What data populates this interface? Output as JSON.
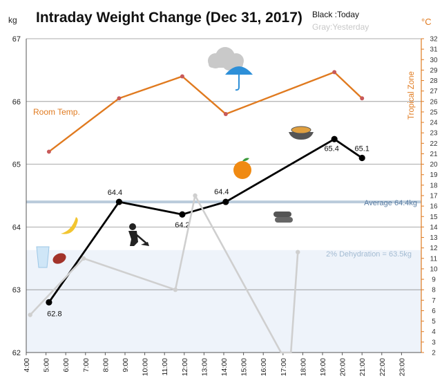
{
  "chart_data": {
    "type": "line",
    "title": "Intraday Weight Change (Dec 31, 2017)",
    "legend": {
      "today": "Black :Today",
      "yesterday": "Gray:Yesterday",
      "placement": "top-right"
    },
    "y_left": {
      "label": "kg",
      "range": [
        62,
        67
      ],
      "ticks": [
        "62",
        "63",
        "64",
        "65",
        "66",
        "67"
      ]
    },
    "y_right": {
      "label": "°C",
      "range": [
        2,
        32
      ],
      "ticks": [
        "2",
        "3",
        "4",
        "5",
        "6",
        "7",
        "8",
        "9",
        "10",
        "11",
        "12",
        "13",
        "14",
        "15",
        "16",
        "17",
        "18",
        "19",
        "20",
        "21",
        "22",
        "23",
        "24",
        "25",
        "26",
        "27",
        "28",
        "29",
        "30",
        "31",
        "32"
      ],
      "color": "#e07a1f"
    },
    "x": {
      "range": [
        4,
        24
      ],
      "ticks": [
        "4:00",
        "5:00",
        "6:00",
        "7:00",
        "8:00",
        "9:00",
        "10:00",
        "11:00",
        "12:00",
        "13:00",
        "14:00",
        "15:00",
        "16:00",
        "17:00",
        "18:00",
        "19:00",
        "20:00",
        "21:00",
        "22:00",
        "23:00"
      ],
      "tick_hours": [
        4,
        5,
        6,
        7,
        8,
        9,
        10,
        11,
        12,
        13,
        14,
        15,
        16,
        17,
        18,
        19,
        20,
        21,
        22,
        23
      ]
    },
    "grid": true,
    "series": [
      {
        "name": "Today",
        "axis": "left",
        "color": "#000000",
        "x": [
          5.15,
          8.7,
          11.9,
          14.1,
          19.6,
          21.0
        ],
        "values": [
          62.8,
          64.4,
          64.2,
          64.4,
          65.4,
          65.1
        ],
        "labels": [
          "62.8",
          "64.4",
          "64.2",
          "64.4",
          "65.4",
          "65.1"
        ]
      },
      {
        "name": "Yesterday",
        "axis": "left",
        "color": "#cfcfcf",
        "x": [
          4.2,
          6.9,
          11.55,
          12.55,
          16.9,
          17.4,
          17.75
        ],
        "values": [
          62.6,
          63.5,
          63.0,
          64.5,
          62.0,
          62.0,
          63.6
        ]
      },
      {
        "name": "Room Temp.",
        "axis": "right",
        "color": "#e07a1f",
        "x": [
          5.15,
          8.7,
          11.9,
          14.1,
          19.6,
          21.0
        ],
        "values": [
          21.2,
          26.3,
          28.4,
          24.8,
          28.8,
          26.3
        ]
      }
    ],
    "reference_lines": [
      {
        "label": "Average 64.4kg",
        "value": 64.4,
        "color": "#a9bfd3"
      },
      {
        "label": "2% Dehydration  = 63.5kg",
        "value": 63.5,
        "color": "#a9bfd3"
      }
    ],
    "annotations": {
      "room_temp": "Room Temp.",
      "tropical_zone": "Tropical Zone"
    },
    "icons": [
      "cloud-icon",
      "umbrella-icon",
      "noodles-icon",
      "orange-icon",
      "banana-icon",
      "gardening-person-icon",
      "bread-icon",
      "water-glass-icon",
      "sausage-icon"
    ]
  }
}
